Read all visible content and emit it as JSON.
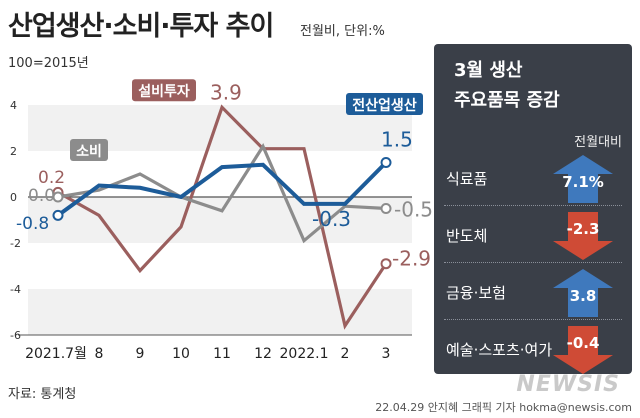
{
  "header": {
    "title": "산업생산·소비·투자 추이",
    "unit": "전월비, 단위:%",
    "base_note": "100=2015년"
  },
  "footer": {
    "source": "자료: 통계청",
    "credit": "22.04.29 안지혜 그래픽 기자 hokma@newsis.com",
    "watermark": "NEWSIS"
  },
  "chart_data": {
    "type": "line",
    "categories": [
      "2021.7월",
      "8",
      "9",
      "10",
      "11",
      "12",
      "2022.1",
      "2",
      "3"
    ],
    "ylim": [
      -6,
      4
    ],
    "yticks": [
      "4",
      "2",
      "0",
      "-2",
      "-4",
      "-6"
    ],
    "series": [
      {
        "name": "설비투자",
        "color": "#9b5f5e",
        "values": [
          0.2,
          -0.8,
          -3.2,
          -1.3,
          3.9,
          2.1,
          2.1,
          -5.6,
          -2.9
        ]
      },
      {
        "name": "소비",
        "color": "#8c8c8c",
        "values": [
          0.0,
          0.3,
          1.0,
          0.0,
          -0.6,
          2.2,
          -1.9,
          -0.4,
          -0.5
        ]
      },
      {
        "name": "전산업생산",
        "color": "#1d5c99",
        "values": [
          -0.8,
          0.5,
          0.4,
          0.0,
          1.3,
          1.4,
          -0.3,
          -0.3,
          1.5
        ]
      }
    ],
    "value_labels": {
      "start": [
        {
          "text": "0.2",
          "series": 0
        },
        {
          "text": "0.0",
          "series": 1
        },
        {
          "text": "-0.8",
          "series": 2
        }
      ],
      "end": [
        {
          "text": "-2.9",
          "series": 0
        },
        {
          "text": "-0.5",
          "series": 1
        },
        {
          "text": "1.5",
          "series": 2
        }
      ],
      "peak": {
        "text": "3.9",
        "series": 0
      }
    }
  },
  "panel": {
    "title_line1": "3월 생산",
    "title_line2": "주요품목 증감",
    "subtitle": "전월대비",
    "items": [
      {
        "label": "식료품",
        "value": "7.1%",
        "direction": "up"
      },
      {
        "label": "반도체",
        "value": "-2.3",
        "direction": "down"
      },
      {
        "label": "금융·보험",
        "value": "3.8",
        "direction": "up"
      },
      {
        "label": "예술·스포츠·여가",
        "value": "-0.4",
        "direction": "down"
      }
    ],
    "colors": {
      "up": "#3f79bd",
      "down": "#cf4b36"
    }
  }
}
